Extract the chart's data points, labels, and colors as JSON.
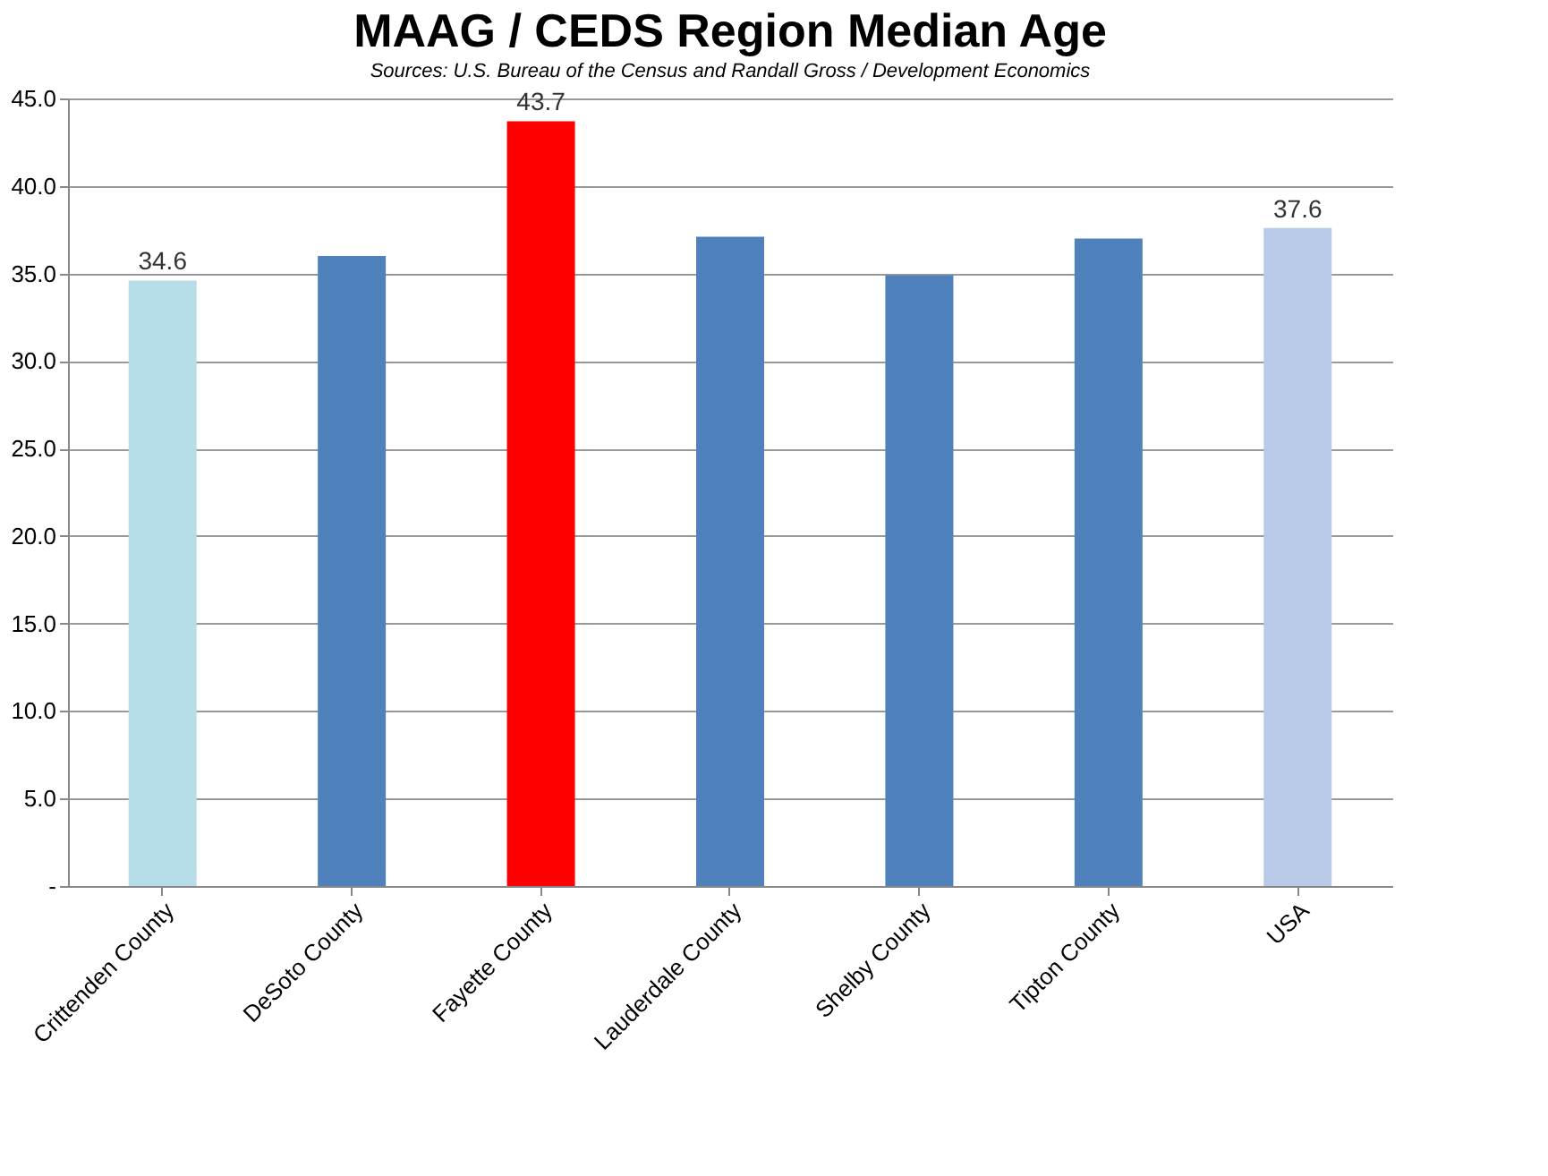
{
  "chart_data": {
    "type": "bar",
    "title": "MAAG / CEDS Region Median Age",
    "subtitle": "Sources: U.S. Bureau of the Census and Randall Gross / Development Economics",
    "categories": [
      "Crittenden County",
      "DeSoto County",
      "Fayette County",
      "Lauderdale County",
      "Shelby County",
      "Tipton County",
      "USA"
    ],
    "values": [
      34.6,
      36.0,
      43.7,
      37.1,
      34.9,
      37.0,
      37.6
    ],
    "value_labels": [
      "34.6",
      null,
      "43.7",
      null,
      null,
      null,
      "37.6"
    ],
    "colors": [
      "#b7dde8",
      "#4f81bd",
      "#ff0000",
      "#4f81bd",
      "#4f81bd",
      "#4f81bd",
      "#b9c9e8"
    ],
    "ylim": [
      0,
      45
    ],
    "yticks": [
      {
        "value": 0,
        "label": "-"
      },
      {
        "value": 5,
        "label": "5.0"
      },
      {
        "value": 10,
        "label": "10.0"
      },
      {
        "value": 15,
        "label": "15.0"
      },
      {
        "value": 20,
        "label": "20.0"
      },
      {
        "value": 25,
        "label": "25.0"
      },
      {
        "value": 30,
        "label": "30.0"
      },
      {
        "value": 35,
        "label": "35.0"
      },
      {
        "value": 40,
        "label": "40.0"
      },
      {
        "value": 45,
        "label": "45.0"
      }
    ],
    "grid": "y"
  }
}
